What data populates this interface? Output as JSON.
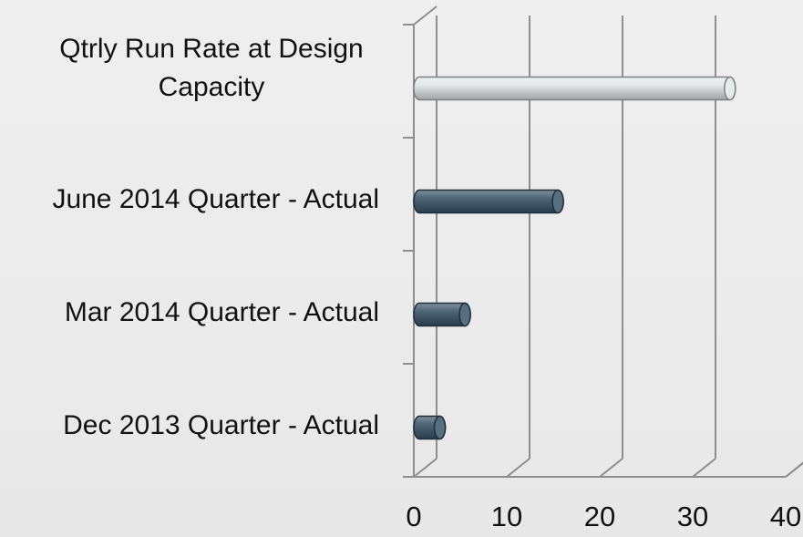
{
  "chart_data": {
    "type": "bar",
    "orientation": "horizontal",
    "style": "3d-cylinder",
    "categories": [
      [
        "Qtrly Run Rate at Design",
        "Capacity"
      ],
      [
        "June 2014 Quarter - Actual"
      ],
      [
        "Mar 2014 Quarter - Actual"
      ],
      [
        "Dec 2013 Quarter - Actual"
      ]
    ],
    "values": [
      34,
      15.5,
      5.5,
      2.8
    ],
    "bar_colors": [
      "#e3e6e8",
      "#3b5568",
      "#3b5568",
      "#3b5568"
    ],
    "xlim": [
      0,
      40
    ],
    "xticks": [
      "0",
      "10",
      "20",
      "30",
      "40"
    ],
    "grid": true,
    "legend": false,
    "title": "",
    "xlabel": "",
    "ylabel": ""
  }
}
